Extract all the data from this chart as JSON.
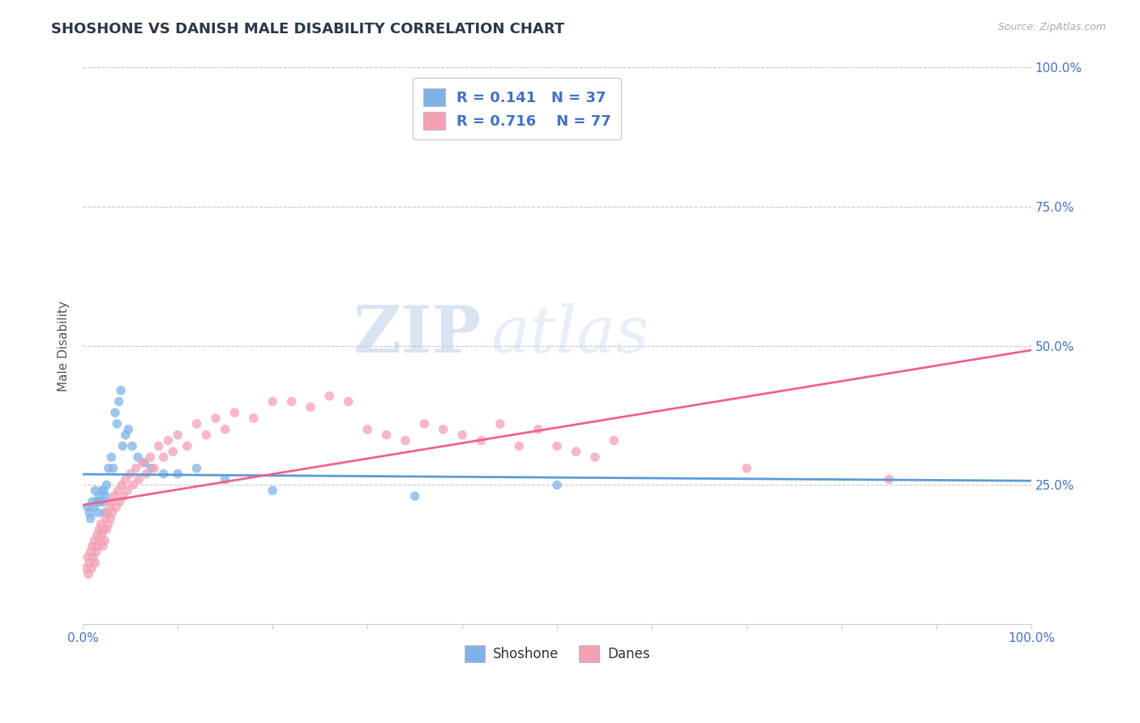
{
  "title": "SHOSHONE VS DANISH MALE DISABILITY CORRELATION CHART",
  "source": "Source: ZipAtlas.com",
  "ylabel": "Male Disability",
  "legend_labels": [
    "Shoshone",
    "Danes"
  ],
  "shoshone_color": "#7fb3e8",
  "danes_color": "#f4a0b5",
  "shoshone_line_color": "#5b9bd5",
  "danes_line_color": "#f06090",
  "R_shoshone": 0.141,
  "N_shoshone": 37,
  "R_danes": 0.716,
  "N_danes": 77,
  "xlim": [
    0,
    1
  ],
  "ylim": [
    0,
    1
  ],
  "shoshone_scatter": [
    [
      0.005,
      0.21
    ],
    [
      0.007,
      0.2
    ],
    [
      0.008,
      0.19
    ],
    [
      0.01,
      0.22
    ],
    [
      0.012,
      0.21
    ],
    [
      0.013,
      0.24
    ],
    [
      0.015,
      0.22
    ],
    [
      0.016,
      0.2
    ],
    [
      0.017,
      0.23
    ],
    [
      0.019,
      0.22
    ],
    [
      0.02,
      0.24
    ],
    [
      0.021,
      0.22
    ],
    [
      0.022,
      0.24
    ],
    [
      0.023,
      0.2
    ],
    [
      0.024,
      0.23
    ],
    [
      0.025,
      0.25
    ],
    [
      0.027,
      0.28
    ],
    [
      0.03,
      0.3
    ],
    [
      0.032,
      0.28
    ],
    [
      0.034,
      0.38
    ],
    [
      0.036,
      0.36
    ],
    [
      0.038,
      0.4
    ],
    [
      0.04,
      0.42
    ],
    [
      0.042,
      0.32
    ],
    [
      0.045,
      0.34
    ],
    [
      0.048,
      0.35
    ],
    [
      0.052,
      0.32
    ],
    [
      0.058,
      0.3
    ],
    [
      0.065,
      0.29
    ],
    [
      0.072,
      0.28
    ],
    [
      0.085,
      0.27
    ],
    [
      0.1,
      0.27
    ],
    [
      0.12,
      0.28
    ],
    [
      0.15,
      0.26
    ],
    [
      0.2,
      0.24
    ],
    [
      0.35,
      0.23
    ],
    [
      0.5,
      0.25
    ]
  ],
  "danes_scatter": [
    [
      0.003,
      0.1
    ],
    [
      0.005,
      0.12
    ],
    [
      0.006,
      0.09
    ],
    [
      0.007,
      0.11
    ],
    [
      0.008,
      0.13
    ],
    [
      0.009,
      0.1
    ],
    [
      0.01,
      0.14
    ],
    [
      0.011,
      0.12
    ],
    [
      0.012,
      0.15
    ],
    [
      0.013,
      0.11
    ],
    [
      0.014,
      0.13
    ],
    [
      0.015,
      0.16
    ],
    [
      0.016,
      0.14
    ],
    [
      0.017,
      0.17
    ],
    [
      0.018,
      0.15
    ],
    [
      0.019,
      0.18
    ],
    [
      0.02,
      0.16
    ],
    [
      0.021,
      0.14
    ],
    [
      0.022,
      0.17
    ],
    [
      0.023,
      0.15
    ],
    [
      0.024,
      0.19
    ],
    [
      0.025,
      0.17
    ],
    [
      0.026,
      0.2
    ],
    [
      0.027,
      0.18
    ],
    [
      0.028,
      0.21
    ],
    [
      0.029,
      0.19
    ],
    [
      0.03,
      0.22
    ],
    [
      0.031,
      0.2
    ],
    [
      0.033,
      0.23
    ],
    [
      0.035,
      0.21
    ],
    [
      0.037,
      0.24
    ],
    [
      0.039,
      0.22
    ],
    [
      0.041,
      0.25
    ],
    [
      0.043,
      0.23
    ],
    [
      0.045,
      0.26
    ],
    [
      0.047,
      0.24
    ],
    [
      0.05,
      0.27
    ],
    [
      0.053,
      0.25
    ],
    [
      0.056,
      0.28
    ],
    [
      0.059,
      0.26
    ],
    [
      0.063,
      0.29
    ],
    [
      0.067,
      0.27
    ],
    [
      0.071,
      0.3
    ],
    [
      0.075,
      0.28
    ],
    [
      0.08,
      0.32
    ],
    [
      0.085,
      0.3
    ],
    [
      0.09,
      0.33
    ],
    [
      0.095,
      0.31
    ],
    [
      0.1,
      0.34
    ],
    [
      0.11,
      0.32
    ],
    [
      0.12,
      0.36
    ],
    [
      0.13,
      0.34
    ],
    [
      0.14,
      0.37
    ],
    [
      0.15,
      0.35
    ],
    [
      0.16,
      0.38
    ],
    [
      0.18,
      0.37
    ],
    [
      0.2,
      0.4
    ],
    [
      0.22,
      0.4
    ],
    [
      0.24,
      0.39
    ],
    [
      0.26,
      0.41
    ],
    [
      0.28,
      0.4
    ],
    [
      0.3,
      0.35
    ],
    [
      0.32,
      0.34
    ],
    [
      0.34,
      0.33
    ],
    [
      0.36,
      0.36
    ],
    [
      0.38,
      0.35
    ],
    [
      0.4,
      0.34
    ],
    [
      0.42,
      0.33
    ],
    [
      0.44,
      0.36
    ],
    [
      0.46,
      0.32
    ],
    [
      0.48,
      0.35
    ],
    [
      0.5,
      0.32
    ],
    [
      0.52,
      0.31
    ],
    [
      0.54,
      0.3
    ],
    [
      0.56,
      0.33
    ],
    [
      0.7,
      0.28
    ],
    [
      0.85,
      0.26
    ]
  ],
  "watermark_zip": "ZIP",
  "watermark_atlas": "atlas",
  "background_color": "#ffffff",
  "grid_color": "#c8c8c8",
  "title_color": "#2d3748",
  "source_color": "#aaaaaa",
  "label_color": "#4472c4"
}
